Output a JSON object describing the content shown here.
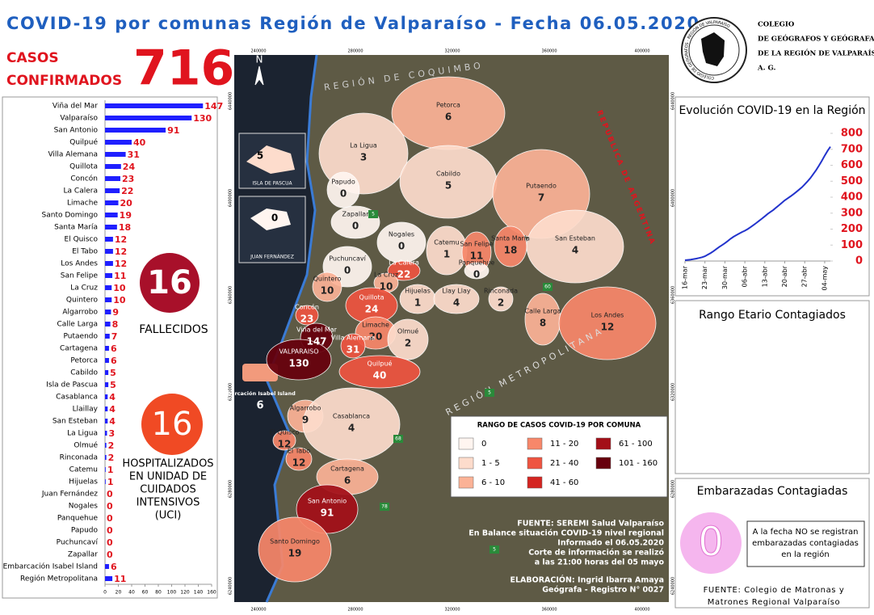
{
  "header": {
    "title": "COVID-19 por comunas Región de Valparaíso - Fecha 06.05.2020",
    "casos_label_1": "CASOS",
    "casos_label_2": "CONFIRMADOS",
    "casos_total": "716"
  },
  "logo": {
    "ring": "COLEGIO DE GEÓGRAFOS · REGIÓN DE VALPARAÍSO",
    "lines": [
      "COLEGIO",
      "DE GEÓGRAFOS Y GEÓGRAFAS",
      "DE LA REGIÓN DE VALPARAÍSO",
      "A. G."
    ]
  },
  "chart_data": [
    {
      "type": "bar",
      "orientation": "horizontal",
      "categories": [
        "Viña del Mar",
        "Valparaíso",
        "San Antonio",
        "Quilpué",
        "Villa Alemana",
        "Quillota",
        "Concón",
        "La Calera",
        "Limache",
        "Santo Domingo",
        "Santa María",
        "El Quisco",
        "El Tabo",
        "Los Andes",
        "San Felipe",
        "La Cruz",
        "Quintero",
        "Algarrobo",
        "Calle Larga",
        "Putaendo",
        "Cartagena",
        "Petorca",
        "Cabildo",
        "Isla de Pascua",
        "Casablanca",
        "Llaillay",
        "San Esteban",
        "La Ligua",
        "Olmué",
        "Rinconada",
        "Catemu",
        "Hijuelas",
        "Juan Fernández",
        "Nogales",
        "Panquehue",
        "Papudo",
        "Puchuncaví",
        "Zapallar",
        "Embarcación Isabel Island",
        "Región Metropolitana"
      ],
      "values": [
        147,
        130,
        91,
        40,
        31,
        24,
        23,
        22,
        20,
        19,
        18,
        12,
        12,
        12,
        11,
        10,
        10,
        9,
        8,
        7,
        6,
        6,
        5,
        5,
        4,
        4,
        4,
        3,
        2,
        2,
        1,
        1,
        0,
        0,
        0,
        0,
        0,
        0,
        6,
        11
      ],
      "color": "#1f1fff",
      "label_color": "#e0141e",
      "xlim": [
        0,
        160
      ],
      "xticks": [
        0,
        20,
        40,
        60,
        80,
        100,
        120,
        140,
        160
      ]
    },
    {
      "type": "line",
      "title": "Evolución COVID-19 en la Región",
      "color": "#2233cc",
      "tick_color": "#e0141e",
      "categories": [
        "16-mar",
        null,
        null,
        null,
        null,
        null,
        null,
        "23-mar",
        null,
        null,
        null,
        null,
        null,
        null,
        "30-mar",
        null,
        null,
        null,
        null,
        null,
        null,
        "06-abr",
        null,
        null,
        null,
        null,
        null,
        null,
        "13-abr",
        null,
        null,
        null,
        null,
        null,
        null,
        "20-abr",
        null,
        null,
        null,
        null,
        null,
        null,
        "27-abr",
        null,
        null,
        null,
        null,
        null,
        null,
        "04-may",
        null,
        null
      ],
      "values": [
        5,
        7,
        9,
        12,
        15,
        19,
        24,
        30,
        40,
        50,
        62,
        75,
        88,
        100,
        112,
        125,
        140,
        152,
        162,
        172,
        182,
        190,
        200,
        212,
        225,
        238,
        252,
        266,
        280,
        295,
        308,
        320,
        335,
        350,
        365,
        380,
        393,
        405,
        418,
        432,
        447,
        462,
        480,
        500,
        520,
        545,
        570,
        598,
        628,
        660,
        690,
        716
      ],
      "ylim": [
        0,
        800
      ],
      "yticks": [
        0,
        100,
        200,
        300,
        400,
        500,
        600,
        700,
        800
      ]
    }
  ],
  "fallecidos": {
    "value": "16",
    "label": "FALLECIDOS"
  },
  "hospitalizados": {
    "value": "16",
    "lines": [
      "HOSPITALIZADOS",
      "EN UNIDAD DE",
      "CUIDADOS",
      "INTENSIVOS",
      "(UCI)"
    ]
  },
  "rango_etario": {
    "title": "Rango Etario Contagiados"
  },
  "embarazadas": {
    "title": "Embarazadas Contagiadas",
    "value": "0",
    "note": [
      "A la fecha NO se registran",
      "embarazadas contagiadas",
      "en la región"
    ],
    "source": [
      "FUENTE: Colegio de Matronas y",
      "Matrones Regional Valparaíso"
    ]
  },
  "map": {
    "north": "N",
    "coord_x": [
      "240000",
      "280000",
      "320000",
      "360000",
      "400000"
    ],
    "coord_y": [
      "6440000",
      "6400000",
      "6360000",
      "6320000",
      "6280000",
      "6240000"
    ],
    "regions": [
      "REGIÓN DE COQUIMBO",
      "REPÚBLICA DE ARGENTINA",
      "REGIÓN METROPOLITANA"
    ],
    "islands": [
      {
        "name": "ISLA DE PASCUA",
        "value": "5"
      },
      {
        "name": "JUAN FERNÁNDEZ",
        "value": "0"
      }
    ],
    "ship": {
      "name": "Embarcación Isabel Island",
      "value": "6"
    },
    "roads": [
      "5",
      "60",
      "68",
      "78",
      "5",
      "5"
    ],
    "comunas": [
      {
        "name": "Petorca",
        "value": 6
      },
      {
        "name": "La Ligua",
        "value": 3
      },
      {
        "name": "Cabildo",
        "value": 5
      },
      {
        "name": "Papudo",
        "value": 0
      },
      {
        "name": "Zapallar",
        "value": 0
      },
      {
        "name": "Putaendo",
        "value": 7
      },
      {
        "name": "Nogales",
        "value": 0
      },
      {
        "name": "Catemu",
        "value": 1
      },
      {
        "name": "San Felipe",
        "value": 11
      },
      {
        "name": "Santa María",
        "value": 18
      },
      {
        "name": "San Esteban",
        "value": 4
      },
      {
        "name": "Puchuncaví",
        "value": 0
      },
      {
        "name": "La Calera",
        "value": 22
      },
      {
        "name": "Panquehue",
        "value": 0
      },
      {
        "name": "La Cruz",
        "value": 10
      },
      {
        "name": "Quintero",
        "value": 10
      },
      {
        "name": "Hijuelas",
        "value": 1
      },
      {
        "name": "Llay Llay",
        "value": 4
      },
      {
        "name": "Rinconada",
        "value": 2
      },
      {
        "name": "Calle Larga",
        "value": 8
      },
      {
        "name": "Los Andes",
        "value": 12
      },
      {
        "name": "Concón",
        "value": 23
      },
      {
        "name": "Quillota",
        "value": 24
      },
      {
        "name": "Viña del Mar",
        "value": 147
      },
      {
        "name": "Limache",
        "value": 20
      },
      {
        "name": "Olmué",
        "value": 2
      },
      {
        "name": "Villa Alemana",
        "value": 31
      },
      {
        "name": "VALPARAISO",
        "value": 130
      },
      {
        "name": "Quilpué",
        "value": 40
      },
      {
        "name": "Algarrobo",
        "value": 9
      },
      {
        "name": "Casablanca",
        "value": 4
      },
      {
        "name": "El Quisco",
        "value": 12
      },
      {
        "name": "El Tabo",
        "value": 12
      },
      {
        "name": "Cartagena",
        "value": 6
      },
      {
        "name": "San Antonio",
        "value": 91
      },
      {
        "name": "Santo Domingo",
        "value": 19
      }
    ],
    "legend": {
      "title": "RANGO DE CASOS COVID-19 POR COMUNA",
      "items": [
        {
          "label": "0",
          "color": "#fff5f0"
        },
        {
          "label": "1 - 5",
          "color": "#fddccc"
        },
        {
          "label": "6 - 10",
          "color": "#fbb296"
        },
        {
          "label": "11 - 20",
          "color": "#f7876a"
        },
        {
          "label": "21 - 40",
          "color": "#ee5440"
        },
        {
          "label": "41 - 60",
          "color": "#d42420"
        },
        {
          "label": "61 - 100",
          "color": "#a30f18"
        },
        {
          "label": "101 - 160",
          "color": "#67000d"
        }
      ]
    },
    "source": [
      "FUENTE: SEREMI Salud Valparaíso",
      "En Balance situación COVID-19 nivel regional",
      "Informado el 06.05.2020",
      "Corte de información se realizó",
      "a las 21:00 horas del 05 mayo",
      "ELABORACIÓN: Ingrid Ibarra Amaya",
      "Geógrafa - Registro N° 0027"
    ]
  }
}
